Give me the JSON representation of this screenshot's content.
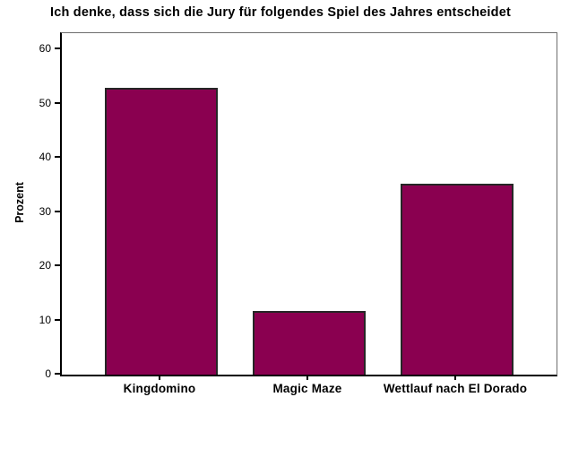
{
  "chart_data": {
    "type": "bar",
    "title": "Ich denke, dass sich die Jury für folgendes Spiel des Jahres entscheidet",
    "categories": [
      "Kingdomino",
      "Magic Maze",
      "Wettlauf nach El Dorado"
    ],
    "values": [
      52.9,
      11.8,
      35.3
    ],
    "xlabel": "",
    "ylabel": "Prozent",
    "ylim": [
      0,
      63
    ],
    "yticks": [
      0,
      10,
      20,
      30,
      40,
      50,
      60
    ],
    "grid": false,
    "legend": "none",
    "bar_color": "#8A0050",
    "bar_border_color": "#262626",
    "frame_color": "#6E6E6E",
    "axis_color": "#000000",
    "text_color": "#000000",
    "background_color": "#FFFFFF"
  }
}
